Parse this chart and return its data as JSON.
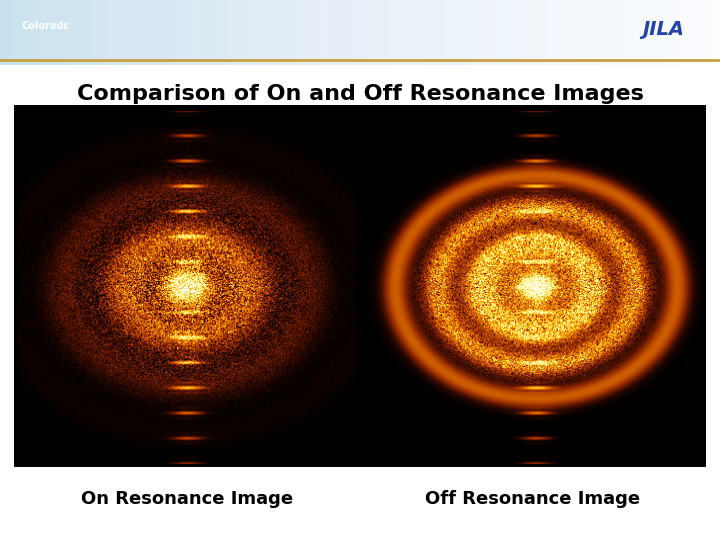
{
  "title": "Comparison of On and Off Resonance Images",
  "label_left": "On Resonance Image",
  "label_right": "Off Resonance Image",
  "title_fontsize": 16,
  "label_fontsize": 13,
  "bg_color": "#ffffff",
  "header_color": "#c8cce0",
  "panel_bg": "#000000",
  "title_color": "#000000",
  "label_color": "#000000"
}
